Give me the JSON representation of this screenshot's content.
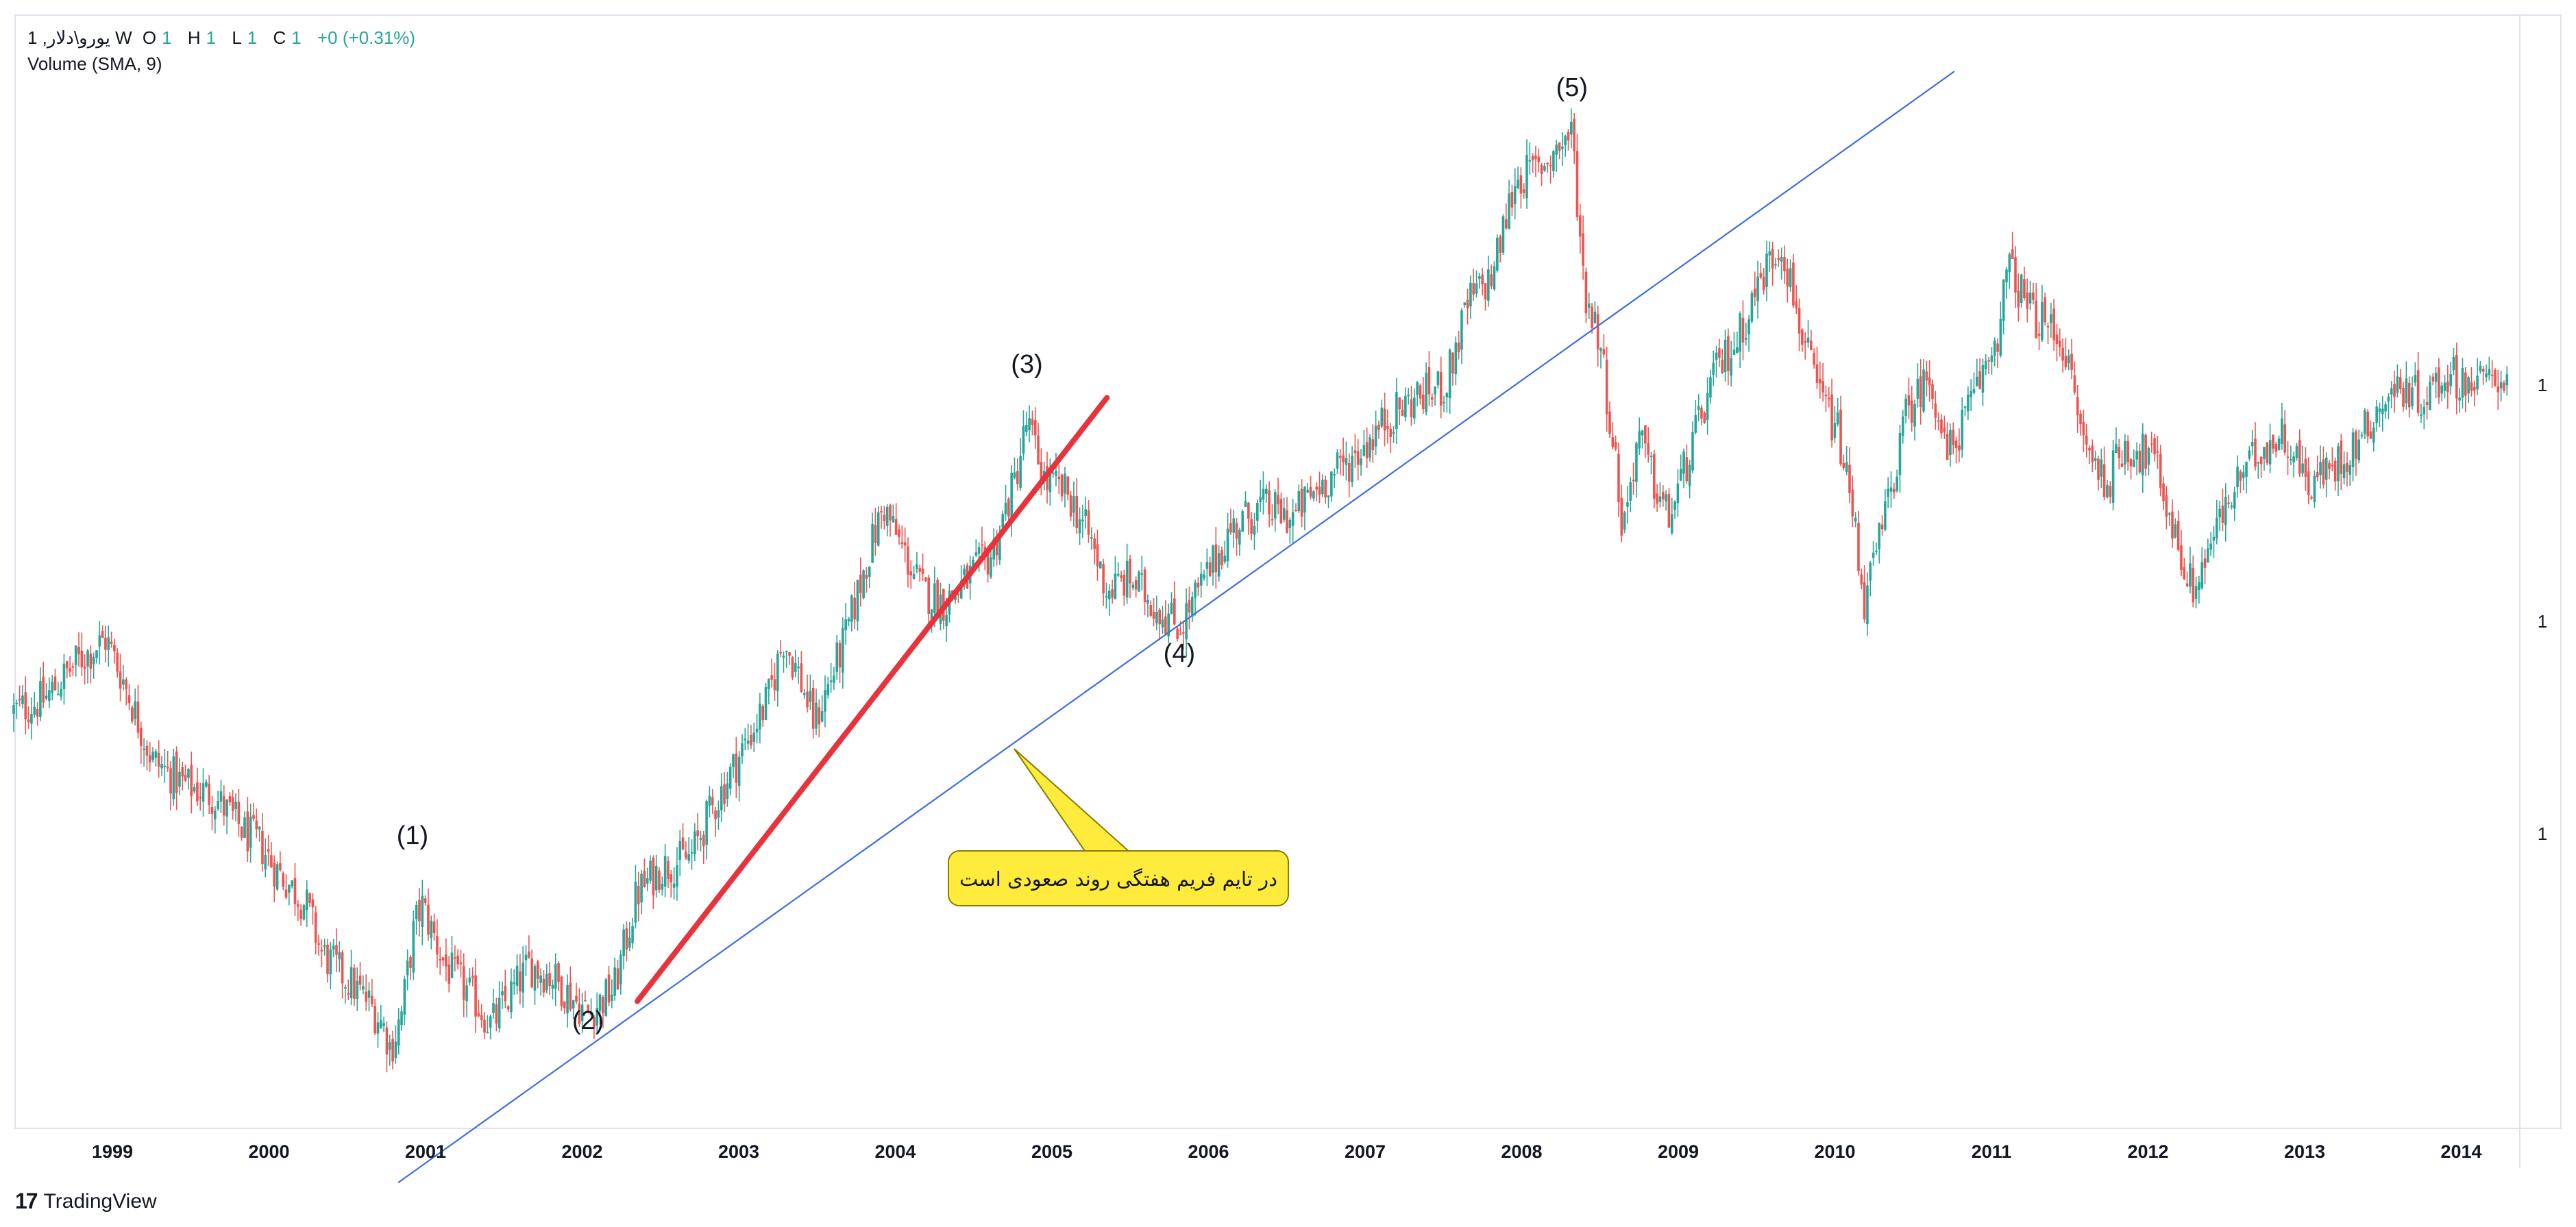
{
  "legend": {
    "symbol": "1 ,یورو\\دلار",
    "interval": "W",
    "open_key": "O",
    "open_val": "1",
    "high_key": "H",
    "high_val": "1",
    "low_key": "L",
    "low_val": "1",
    "close_key": "C",
    "close_val": "1",
    "change": "+0 (+0.31%)",
    "indicator": "Volume (SMA, 9)"
  },
  "watermark": {
    "brand": "TradingView",
    "logo_text": "17"
  },
  "price_scale_labels": [
    "1",
    "1",
    "1"
  ],
  "colors": {
    "up": "#26a69a",
    "down": "#ef5350",
    "trendline": "#3d6ee0",
    "red_line": "#e8323c",
    "callout_fill": "#ffeb3b",
    "callout_stroke": "#8a7b00"
  },
  "wave_labels": [
    {
      "text": "(1)",
      "date": 2000.99,
      "anchor": "above",
      "ref_low": 0.82
    },
    {
      "text": "(2)",
      "date": 2002.13,
      "anchor": "below",
      "ref_low": 0.5
    },
    {
      "text": "(3)",
      "date": 2004.98,
      "anchor": "above",
      "ref_low": 1.36
    },
    {
      "text": "(4)",
      "date": 2005.97,
      "anchor": "below",
      "ref_low": 1.17
    },
    {
      "text": "(5)",
      "date": 2008.52,
      "anchor": "above",
      "ref_low": 1.6
    }
  ],
  "annotation": {
    "text": "در تایم فریم هفتگی روند صعودی است"
  },
  "chart_data": {
    "type": "candlestick",
    "interval": "W",
    "x_axis": {
      "ticks": [
        "1999",
        "2000",
        "2001",
        "2002",
        "2003",
        "2004",
        "2005",
        "2006",
        "2007",
        "2008",
        "2009",
        "2010",
        "2011",
        "2012",
        "2013",
        "2014"
      ],
      "range": [
        1998.4,
        2014.6
      ]
    },
    "y_range": [
      0.78,
      1.62
    ],
    "close_path": [
      [
        1998.4,
        1.11
      ],
      [
        1998.6,
        1.12
      ],
      [
        1998.8,
        1.15
      ],
      [
        1999.0,
        1.17
      ],
      [
        1999.1,
        1.14
      ],
      [
        1999.3,
        1.07
      ],
      [
        1999.5,
        1.05
      ],
      [
        1999.7,
        1.04
      ],
      [
        1999.9,
        1.01
      ],
      [
        2000.0,
        1.0
      ],
      [
        2000.1,
        0.98
      ],
      [
        2000.3,
        0.95
      ],
      [
        2000.4,
        0.91
      ],
      [
        2000.55,
        0.89
      ],
      [
        2000.7,
        0.87
      ],
      [
        2000.8,
        0.85
      ],
      [
        2000.85,
        0.83
      ],
      [
        2000.92,
        0.86
      ],
      [
        2001.0,
        0.93
      ],
      [
        2001.05,
        0.95
      ],
      [
        2001.2,
        0.9
      ],
      [
        2001.4,
        0.87
      ],
      [
        2001.5,
        0.85
      ],
      [
        2001.6,
        0.87
      ],
      [
        2001.75,
        0.9
      ],
      [
        2001.9,
        0.89
      ],
      [
        2002.05,
        0.87
      ],
      [
        2002.13,
        0.86
      ],
      [
        2002.3,
        0.88
      ],
      [
        2002.45,
        0.96
      ],
      [
        2002.6,
        0.98
      ],
      [
        2002.8,
        0.99
      ],
      [
        2002.9,
        1.02
      ],
      [
        2003.1,
        1.07
      ],
      [
        2003.3,
        1.12
      ],
      [
        2003.4,
        1.17
      ],
      [
        2003.5,
        1.14
      ],
      [
        2003.6,
        1.1
      ],
      [
        2003.8,
        1.17
      ],
      [
        2003.95,
        1.24
      ],
      [
        2004.05,
        1.28
      ],
      [
        2004.15,
        1.25
      ],
      [
        2004.3,
        1.21
      ],
      [
        2004.45,
        1.2
      ],
      [
        2004.6,
        1.22
      ],
      [
        2004.75,
        1.24
      ],
      [
        2004.9,
        1.3
      ],
      [
        2004.98,
        1.35
      ],
      [
        2005.1,
        1.3
      ],
      [
        2005.25,
        1.29
      ],
      [
        2005.4,
        1.25
      ],
      [
        2005.5,
        1.21
      ],
      [
        2005.65,
        1.22
      ],
      [
        2005.8,
        1.2
      ],
      [
        2005.97,
        1.18
      ],
      [
        2006.1,
        1.21
      ],
      [
        2006.3,
        1.26
      ],
      [
        2006.5,
        1.28
      ],
      [
        2006.7,
        1.27
      ],
      [
        2006.9,
        1.3
      ],
      [
        2007.1,
        1.32
      ],
      [
        2007.3,
        1.35
      ],
      [
        2007.5,
        1.37
      ],
      [
        2007.7,
        1.38
      ],
      [
        2007.85,
        1.45
      ],
      [
        2008.0,
        1.47
      ],
      [
        2008.15,
        1.55
      ],
      [
        2008.3,
        1.56
      ],
      [
        2008.45,
        1.58
      ],
      [
        2008.52,
        1.59
      ],
      [
        2008.6,
        1.46
      ],
      [
        2008.7,
        1.42
      ],
      [
        2008.8,
        1.32
      ],
      [
        2008.85,
        1.26
      ],
      [
        2008.95,
        1.34
      ],
      [
        2009.05,
        1.3
      ],
      [
        2009.15,
        1.27
      ],
      [
        2009.3,
        1.33
      ],
      [
        2009.45,
        1.39
      ],
      [
        2009.6,
        1.42
      ],
      [
        2009.75,
        1.47
      ],
      [
        2009.88,
        1.5
      ],
      [
        2010.0,
        1.43
      ],
      [
        2010.1,
        1.38
      ],
      [
        2010.25,
        1.34
      ],
      [
        2010.35,
        1.27
      ],
      [
        2010.42,
        1.2
      ],
      [
        2010.55,
        1.27
      ],
      [
        2010.7,
        1.36
      ],
      [
        2010.85,
        1.39
      ],
      [
        2010.95,
        1.32
      ],
      [
        2011.1,
        1.36
      ],
      [
        2011.3,
        1.43
      ],
      [
        2011.35,
        1.48
      ],
      [
        2011.5,
        1.44
      ],
      [
        2011.7,
        1.42
      ],
      [
        2011.85,
        1.33
      ],
      [
        2012.0,
        1.3
      ],
      [
        2012.1,
        1.33
      ],
      [
        2012.3,
        1.32
      ],
      [
        2012.45,
        1.25
      ],
      [
        2012.55,
        1.21
      ],
      [
        2012.7,
        1.26
      ],
      [
        2012.85,
        1.3
      ],
      [
        2013.0,
        1.33
      ],
      [
        2013.15,
        1.34
      ],
      [
        2013.3,
        1.3
      ],
      [
        2013.45,
        1.31
      ],
      [
        2013.6,
        1.33
      ],
      [
        2013.75,
        1.36
      ],
      [
        2013.9,
        1.38
      ],
      [
        2014.05,
        1.37
      ],
      [
        2014.2,
        1.39
      ],
      [
        2014.4,
        1.38
      ],
      [
        2014.55,
        1.39
      ]
    ],
    "trendlines": [
      {
        "name": "blue",
        "from": [
          2000.9,
          0.72
        ],
        "to": [
          2011.0,
          1.64
        ]
      },
      {
        "name": "red",
        "from": [
          2002.45,
          0.87
        ],
        "to": [
          2005.5,
          1.37
        ]
      }
    ]
  }
}
